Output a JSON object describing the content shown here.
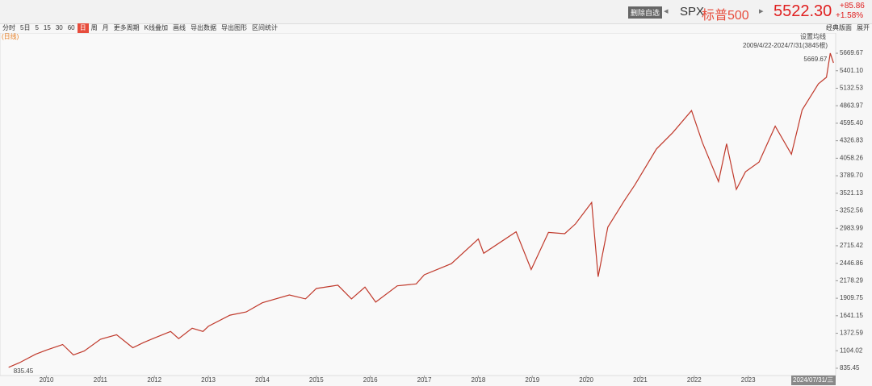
{
  "header": {
    "button": "删除自选",
    "symbol": "SPX",
    "name": "标普500",
    "price": "5522.30",
    "change": "+85.86",
    "change_pct": "+1.58%"
  },
  "toolbar": {
    "items": [
      "分时",
      "5日",
      "5",
      "15",
      "30",
      "60",
      "日",
      "周",
      "月",
      "更多周期",
      "K线叠加",
      "画线",
      "导出数据",
      "导出图形",
      "区间统计"
    ],
    "right": [
      "经典版面",
      "展开"
    ]
  },
  "chart_data": {
    "type": "line",
    "period_label": "(日线)",
    "ma_setting": "设置均线",
    "range_label": "2009/4/22-2024/7/31(3845根)",
    "max_label": "5669.67",
    "min_label": "835.45",
    "cursor_date": "2024/07/31/三",
    "color": "#c0392b",
    "x": [
      2009.3,
      2009.5,
      2009.8,
      2010.0,
      2010.3,
      2010.5,
      2010.7,
      2011.0,
      2011.3,
      2011.6,
      2011.8,
      2012.0,
      2012.3,
      2012.45,
      2012.7,
      2012.9,
      2013.0,
      2013.4,
      2013.7,
      2014.0,
      2014.5,
      2014.8,
      2015.0,
      2015.4,
      2015.65,
      2015.9,
      2016.1,
      2016.5,
      2016.85,
      2017.0,
      2017.5,
      2018.0,
      2018.1,
      2018.7,
      2018.98,
      2019.3,
      2019.6,
      2019.8,
      2020.1,
      2020.22,
      2020.4,
      2020.7,
      2020.9,
      2021.3,
      2021.6,
      2021.95,
      2022.15,
      2022.45,
      2022.6,
      2022.78,
      2022.95,
      2023.2,
      2023.5,
      2023.8,
      2024.0,
      2024.3,
      2024.45,
      2024.52,
      2024.58
    ],
    "values": [
      850,
      920,
      1050,
      1115,
      1200,
      1040,
      1100,
      1280,
      1350,
      1150,
      1230,
      1300,
      1400,
      1290,
      1450,
      1400,
      1480,
      1650,
      1700,
      1840,
      1960,
      1900,
      2060,
      2110,
      1900,
      2080,
      1850,
      2100,
      2130,
      2270,
      2440,
      2820,
      2600,
      2930,
      2350,
      2920,
      2900,
      3050,
      3380,
      2240,
      3000,
      3400,
      3650,
      4200,
      4450,
      4790,
      4300,
      3700,
      4280,
      3580,
      3850,
      4000,
      4550,
      4120,
      4800,
      5200,
      5300,
      5669.67,
      5522.3
    ],
    "xlim": [
      2009.14,
      2024.62
    ],
    "xticks": [
      2010,
      2011,
      2012,
      2013,
      2014,
      2015,
      2016,
      2017,
      2018,
      2019,
      2020,
      2021,
      2022,
      2023
    ],
    "ylim": [
      723.9,
      5979.4
    ],
    "yticks": [
      835.45,
      1104.02,
      1372.59,
      1641.15,
      1909.75,
      2178.29,
      2446.86,
      2715.42,
      2983.99,
      3252.56,
      3521.13,
      {
        "value": 3789.7,
        "label": "3789.70"
      },
      4058.26,
      4326.83,
      {
        "value": 4595.4,
        "label": "4595.40"
      },
      4863.97,
      5132.53,
      {
        "value": 5401.1,
        "label": "5401.10"
      },
      5669.67
    ],
    "grid": false
  }
}
